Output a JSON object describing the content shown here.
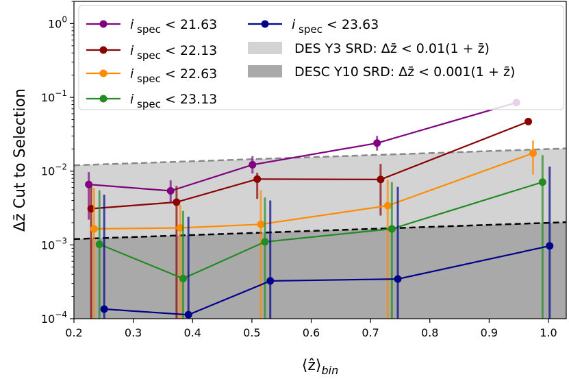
{
  "chart_data": {
    "type": "line",
    "ylabel": "Δz̄ Cut to Selection",
    "xlabel": "⟨ẑ⟩bin",
    "x_ticks": [
      "0.2",
      "0.3",
      "0.4",
      "0.5",
      "0.6",
      "0.7",
      "0.8",
      "0.9",
      "1.0"
    ],
    "y_ticks": [
      {
        "base": "10",
        "exp": "−4",
        "value": 0.0001
      },
      {
        "base": "10",
        "exp": "−3",
        "value": 0.001
      },
      {
        "base": "10",
        "exp": "−2",
        "value": 0.01
      },
      {
        "base": "10",
        "exp": "−1",
        "value": 0.1
      },
      {
        "base": "10",
        "exp": "0",
        "value": 1
      }
    ],
    "xlim": [
      0.2,
      1.03
    ],
    "ylim": [
      0.0001,
      2.0
    ],
    "yscale": "log",
    "bands": [
      {
        "label": "DES Y3 SRD: Δz̄ < 0.01(1 + z̄)",
        "factor": 0.01,
        "color": "#d3d3d3"
      },
      {
        "label": "DESC Y10 SRD: Δz̄ < 0.001(1 + z̄)",
        "factor": 0.001,
        "color": "#a9a9a9"
      }
    ],
    "series": [
      {
        "name": "i spec < 21.63",
        "sub": "spec",
        "tail": " < 21.63",
        "color": "#800080",
        "x": [
          0.225,
          0.363,
          0.501,
          0.711,
          0.946
        ],
        "y": [
          0.0066,
          0.0054,
          0.0122,
          0.024,
          0.085
        ],
        "ylo": [
          0.0022,
          0.0037,
          0.0093,
          0.019,
          0.081
        ],
        "yhi": [
          0.0097,
          0.0075,
          0.016,
          0.03,
          0.089
        ]
      },
      {
        "name": "i spec < 22.13",
        "sub": "spec",
        "tail": " < 22.13",
        "color": "#8b0000",
        "x": [
          0.229,
          0.373,
          0.509,
          0.717,
          0.966
        ],
        "y": [
          0.0031,
          0.0038,
          0.0078,
          0.0077,
          0.047
        ],
        "ylo": [
          0.0001,
          0.0001,
          0.0042,
          0.0025,
          0.043
        ],
        "yhi": [
          0.0063,
          0.0063,
          0.0095,
          0.0125,
          0.052
        ]
      },
      {
        "name": "i spec < 22.63",
        "sub": "spec",
        "tail": " < 22.63",
        "color": "#ff8c00",
        "x": [
          0.234,
          0.379,
          0.515,
          0.729,
          0.974
        ],
        "y": [
          0.00165,
          0.0017,
          0.0019,
          0.0034,
          0.0175
        ],
        "ylo": [
          0.0001,
          0.0001,
          0.0001,
          0.0001,
          0.009
        ],
        "yhi": [
          0.0059,
          0.0035,
          0.0055,
          0.0076,
          0.026
        ]
      },
      {
        "name": "i spec < 23.13",
        "sub": "spec",
        "tail": " < 23.13",
        "color": "#228b22",
        "x": [
          0.243,
          0.384,
          0.522,
          0.736,
          0.99
        ],
        "y": [
          0.00102,
          0.00035,
          0.0011,
          0.00165,
          0.0071
        ],
        "ylo": [
          0.0001,
          0.0001,
          0.0001,
          0.0001,
          0.0001
        ],
        "yhi": [
          0.0055,
          0.0029,
          0.0044,
          0.0071,
          0.0165
        ]
      },
      {
        "name": "i spec < 23.63",
        "sub": "spec",
        "tail": " < 23.63",
        "color": "#00008b",
        "x": [
          0.251,
          0.393,
          0.531,
          0.746,
          1.002
        ],
        "y": [
          0.000135,
          0.000113,
          0.000325,
          0.000345,
          0.00097
        ],
        "ylo": [
          0.0001,
          0.0001,
          0.0001,
          0.0001,
          0.0001
        ],
        "yhi": [
          0.0048,
          0.0024,
          0.004,
          0.0061,
          0.0115
        ]
      }
    ],
    "legend_position": "top"
  }
}
